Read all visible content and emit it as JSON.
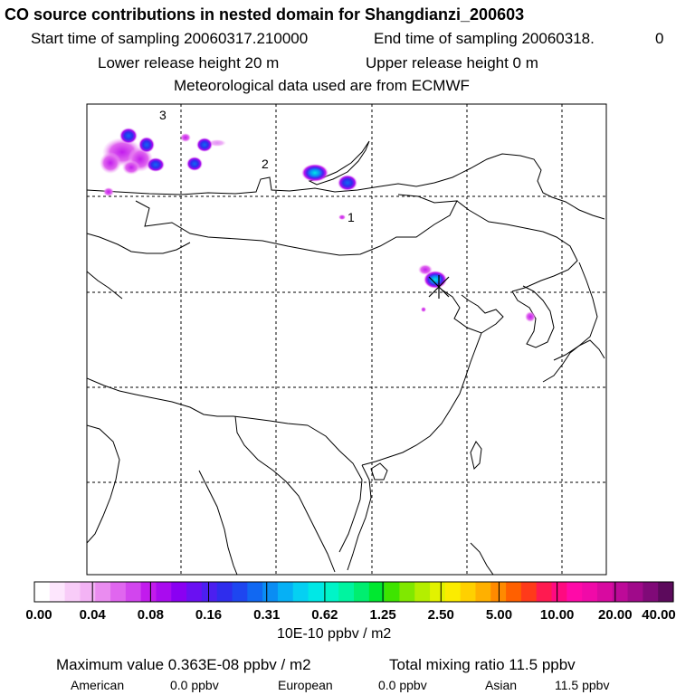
{
  "header": {
    "title": "CO  source contributions in nested domain for Shangdianzi_200603",
    "start": "Start time of sampling 20060317.210000",
    "end": "End time of sampling 20060318.",
    "end_suffix": "0",
    "lower": "Lower release height   20 m",
    "upper": "Upper release height    0 m",
    "met": "Meteorological data used are from ECMWF"
  },
  "map": {
    "contour_labels": [
      "3",
      "2",
      "1"
    ],
    "station_marker": "receptor-cross"
  },
  "colorbar": {
    "ticks": [
      "0.00",
      "0.04",
      "0.08",
      "0.16",
      "0.31",
      "0.62",
      "1.25",
      "2.50",
      "5.00",
      "10.00",
      "20.00",
      "40.00"
    ],
    "unit": "10E-10 ppbv / m2",
    "colors": [
      "#ffffff",
      "#fde6fd",
      "#f8ccf8",
      "#f3b3f5",
      "#ea8cf0",
      "#e066ef",
      "#d245ee",
      "#c21bed",
      "#a90bef",
      "#8a00f2",
      "#6a10f2",
      "#4c1ff0",
      "#2f2ded",
      "#1e46f0",
      "#1168f2",
      "#0a8df3",
      "#06b0f5",
      "#05d0f2",
      "#00e8e6",
      "#00f4c8",
      "#00f4a0",
      "#00ee70",
      "#00e830",
      "#3ee400",
      "#80e800",
      "#b4ee00",
      "#e2f200",
      "#fbec00",
      "#ffd000",
      "#ffb000",
      "#ff8a00",
      "#ff6000",
      "#ff3a1a",
      "#ff1a50",
      "#ff0a80",
      "#ff0aa8",
      "#f00aa8",
      "#d80aa0",
      "#bd0a98",
      "#a00a8a",
      "#800a78",
      "#5c0a5c"
    ]
  },
  "summary": {
    "max_label": "Maximum value  0.363E-08 ppbv / m2",
    "total_label": "Total mixing ratio      11.5 ppbv",
    "american_label": "American",
    "american_value": "0.0 ppbv",
    "european_label": "European",
    "european_value": "0.0 ppbv",
    "asian_label": "Asian",
    "asian_value": "11.5 ppbv"
  }
}
